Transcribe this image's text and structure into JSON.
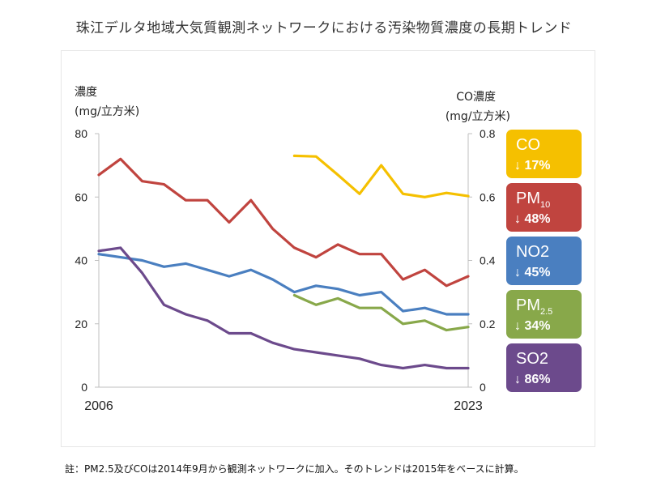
{
  "title": "珠江デルタ地域大気質観測ネットワークにおける汚染物質濃度の長期トレンド",
  "note": "註：PM2.5及びCOは2014年9月から観測ネットワークに加入。そのトレンドは2015年をベースに計算。",
  "chart_data": {
    "type": "line",
    "left_axis_label": [
      "濃度",
      "(mg/立方米)"
    ],
    "right_axis_label": [
      "CO濃度",
      "(mg/立方米)"
    ],
    "ylim": [
      0,
      80
    ],
    "y2lim": [
      0,
      0.8
    ],
    "y_ticks": [
      "0",
      "20",
      "40",
      "60",
      "80"
    ],
    "y2_ticks": [
      "0",
      "0.2",
      "0.4",
      "0.6",
      "0.8"
    ],
    "x_range": [
      2006,
      2023
    ],
    "x_tick_labels": [
      "2006",
      "2023"
    ],
    "grid": false,
    "series": [
      {
        "key": "co",
        "name": "CO",
        "axis": "right",
        "color": "#f5c000",
        "x": [
          2015,
          2016,
          2017,
          2018,
          2019,
          2020,
          2021,
          2022,
          2023
        ],
        "values": [
          0.73,
          0.728,
          0.67,
          0.61,
          0.7,
          0.61,
          0.6,
          0.613,
          0.603
        ]
      },
      {
        "key": "pm10",
        "name": "PM10",
        "axis": "left",
        "color": "#c0443f",
        "x": [
          2006,
          2007,
          2008,
          2009,
          2010,
          2011,
          2012,
          2013,
          2014,
          2015,
          2016,
          2017,
          2018,
          2019,
          2020,
          2021,
          2022,
          2023
        ],
        "values": [
          67,
          72,
          65,
          64,
          59,
          59,
          52,
          59,
          50,
          44,
          41,
          45,
          42,
          42,
          34,
          37,
          32,
          35
        ]
      },
      {
        "key": "no2",
        "name": "NO2",
        "axis": "left",
        "color": "#4a7fc0",
        "x": [
          2006,
          2007,
          2008,
          2009,
          2010,
          2011,
          2012,
          2013,
          2014,
          2015,
          2016,
          2017,
          2018,
          2019,
          2020,
          2021,
          2022,
          2023
        ],
        "values": [
          42,
          41,
          40,
          38,
          39,
          37,
          35,
          37,
          34,
          30,
          32,
          31,
          29,
          30,
          24,
          25,
          23,
          23
        ]
      },
      {
        "key": "pm25",
        "name": "PM2.5",
        "axis": "left",
        "color": "#88a84a",
        "x": [
          2015,
          2016,
          2017,
          2018,
          2019,
          2020,
          2021,
          2022,
          2023
        ],
        "values": [
          29,
          26,
          28,
          25,
          25,
          20,
          21,
          18,
          19
        ]
      },
      {
        "key": "so2",
        "name": "SO2",
        "axis": "left",
        "color": "#6c4a8c",
        "x": [
          2006,
          2007,
          2008,
          2009,
          2010,
          2011,
          2012,
          2013,
          2014,
          2015,
          2016,
          2017,
          2018,
          2019,
          2020,
          2021,
          2022,
          2023
        ],
        "values": [
          43,
          44,
          36,
          26,
          23,
          21,
          17,
          17,
          14,
          12,
          11,
          10,
          9,
          7,
          6,
          7,
          6,
          6
        ]
      }
    ]
  },
  "badges": [
    {
      "key": "co",
      "label": "CO",
      "sub": "",
      "change": "↓ 17%",
      "color": "#f5c000"
    },
    {
      "key": "pm10",
      "label": "PM",
      "sub": "10",
      "change": "↓ 48%",
      "color": "#c0443f"
    },
    {
      "key": "no2",
      "label": "NO2",
      "sub": "",
      "change": "↓ 45%",
      "color": "#4a7fc0"
    },
    {
      "key": "pm25",
      "label": "PM",
      "sub": "2.5",
      "change": "↓ 34%",
      "color": "#88a84a"
    },
    {
      "key": "so2",
      "label": "SO2",
      "sub": "",
      "change": "↓ 86%",
      "color": "#6c4a8c"
    }
  ]
}
